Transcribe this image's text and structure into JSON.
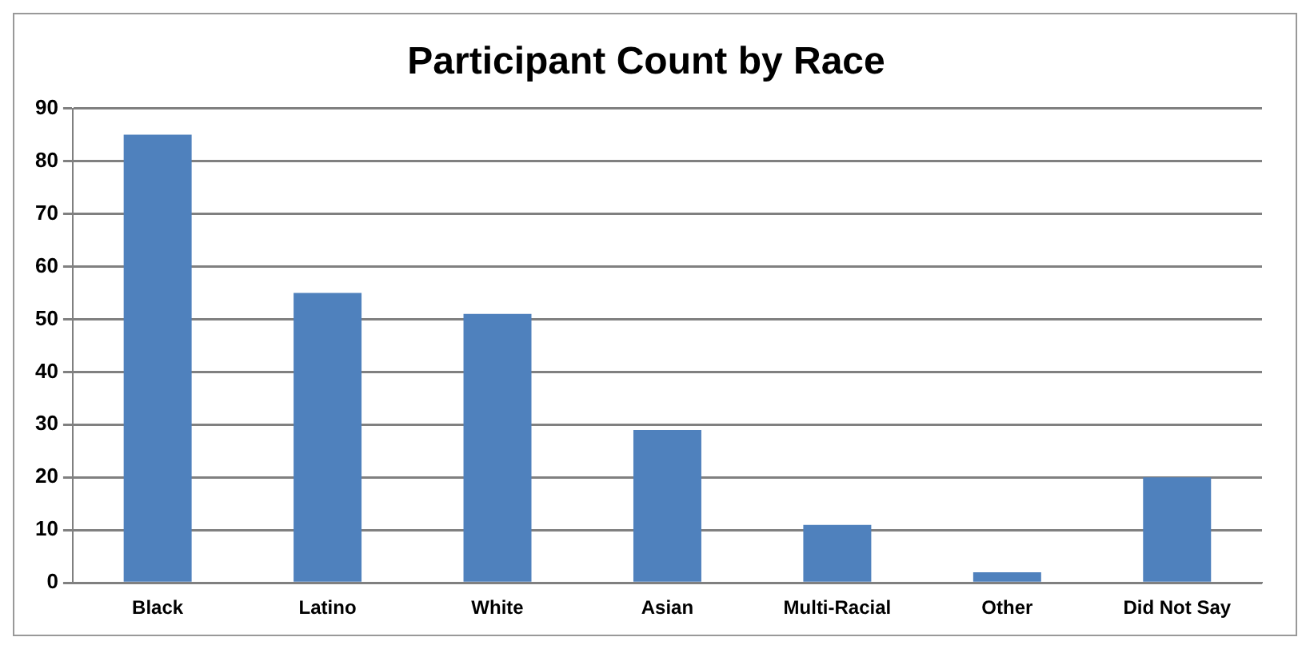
{
  "chart_data": {
    "type": "bar",
    "title": "Participant Count by Race",
    "categories": [
      "Black",
      "Latino",
      "White",
      "Asian",
      "Multi-Racial",
      "Other",
      "Did Not Say"
    ],
    "values": [
      85,
      55,
      51,
      29,
      11,
      2,
      20
    ],
    "color": "#4f81bd",
    "ylim": [
      0,
      90
    ],
    "yticks": [
      0,
      10,
      20,
      30,
      40,
      50,
      60,
      70,
      80,
      90
    ],
    "grid": "y",
    "legend": false
  }
}
